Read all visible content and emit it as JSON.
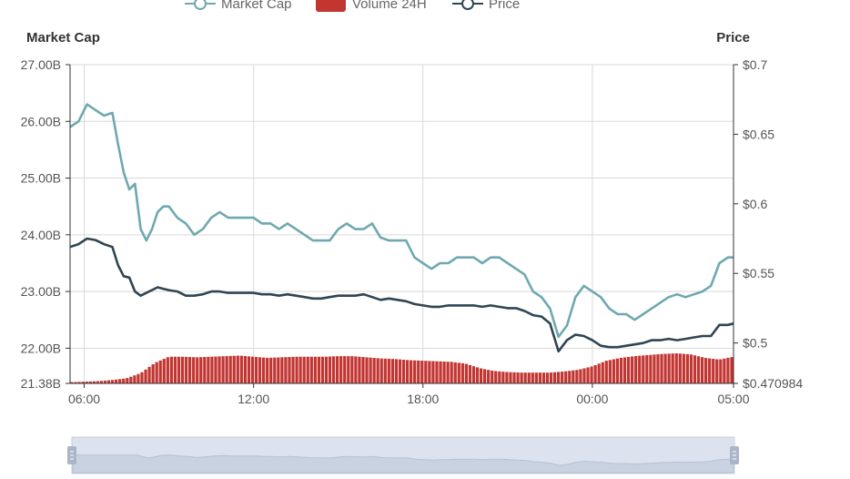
{
  "chart_data": {
    "type": "line",
    "legend": {
      "placement": "top-center",
      "items": [
        {
          "label": "Market Cap",
          "color": "#6fa8b0",
          "marker": "line-circle"
        },
        {
          "label": "Volume 24H",
          "color": "#c23531",
          "marker": "rect"
        },
        {
          "label": "Price",
          "color": "#2f4554",
          "marker": "line-circle"
        }
      ]
    },
    "left_axis": {
      "title": "Market Cap",
      "ticks": [
        "27.00B",
        "26.00B",
        "25.00B",
        "24.00B",
        "23.00B",
        "22.00B",
        "21.38B"
      ],
      "tick_values": [
        27.0,
        26.0,
        25.0,
        24.0,
        23.0,
        22.0,
        21.38
      ],
      "ylim": [
        21.38,
        27.0
      ],
      "unit": "B"
    },
    "right_axis": {
      "title": "Price",
      "ticks": [
        "$0.7",
        "$0.65",
        "$0.6",
        "$0.55",
        "$0.5",
        "$0.470984"
      ],
      "tick_values": [
        0.7,
        0.65,
        0.6,
        0.55,
        0.5,
        0.470984
      ],
      "ylim": [
        0.470984,
        0.7
      ]
    },
    "x_axis": {
      "ticks": [
        "06:00",
        "12:00",
        "18:00",
        "00:00",
        "05:00"
      ],
      "tick_hours": [
        6,
        12,
        18,
        24,
        29
      ],
      "xlim": [
        5.5,
        29
      ]
    },
    "grid": true,
    "colors": {
      "market_cap": "#6fa8b0",
      "price": "#2f4554",
      "volume": "#c23531",
      "axis": "#333333",
      "grid": "#d9d9d9"
    },
    "series": [
      {
        "name": "Market Cap",
        "axis": "left",
        "x": [
          5.5,
          5.8,
          6.1,
          6.4,
          6.7,
          7.0,
          7.2,
          7.4,
          7.6,
          7.8,
          8.0,
          8.2,
          8.4,
          8.6,
          8.8,
          9.0,
          9.3,
          9.6,
          9.9,
          10.2,
          10.5,
          10.8,
          11.1,
          11.4,
          11.7,
          12.0,
          12.3,
          12.6,
          12.9,
          13.2,
          13.5,
          13.8,
          14.1,
          14.4,
          14.7,
          15.0,
          15.3,
          15.6,
          15.9,
          16.2,
          16.5,
          16.8,
          17.1,
          17.4,
          17.7,
          18.0,
          18.3,
          18.6,
          18.9,
          19.2,
          19.5,
          19.8,
          20.1,
          20.4,
          20.7,
          21.0,
          21.3,
          21.6,
          21.9,
          22.2,
          22.5,
          22.8,
          23.1,
          23.4,
          23.7,
          24.0,
          24.3,
          24.6,
          24.9,
          25.2,
          25.5,
          25.8,
          26.1,
          26.4,
          26.7,
          27.0,
          27.3,
          27.6,
          27.9,
          28.2,
          28.5,
          28.8,
          29.0
        ],
        "values": [
          25.9,
          26.0,
          26.3,
          26.2,
          26.1,
          26.15,
          25.6,
          25.1,
          24.8,
          24.9,
          24.1,
          23.9,
          24.1,
          24.4,
          24.5,
          24.5,
          24.3,
          24.2,
          24.0,
          24.1,
          24.3,
          24.4,
          24.3,
          24.3,
          24.3,
          24.3,
          24.2,
          24.2,
          24.1,
          24.2,
          24.1,
          24.0,
          23.9,
          23.9,
          23.9,
          24.1,
          24.2,
          24.1,
          24.1,
          24.2,
          23.95,
          23.9,
          23.9,
          23.9,
          23.6,
          23.5,
          23.4,
          23.5,
          23.5,
          23.6,
          23.6,
          23.6,
          23.5,
          23.6,
          23.6,
          23.5,
          23.4,
          23.3,
          23.0,
          22.9,
          22.7,
          22.2,
          22.4,
          22.9,
          23.1,
          23.0,
          22.9,
          22.7,
          22.6,
          22.6,
          22.5,
          22.6,
          22.7,
          22.8,
          22.9,
          22.95,
          22.9,
          22.95,
          23.0,
          23.1,
          23.5,
          23.6,
          23.6
        ]
      },
      {
        "name": "Price",
        "axis": "right",
        "x": [
          5.5,
          5.8,
          6.1,
          6.4,
          6.7,
          7.0,
          7.2,
          7.4,
          7.6,
          7.8,
          8.0,
          8.2,
          8.4,
          8.6,
          8.8,
          9.0,
          9.3,
          9.6,
          9.9,
          10.2,
          10.5,
          10.8,
          11.1,
          11.4,
          11.7,
          12.0,
          12.3,
          12.6,
          12.9,
          13.2,
          13.5,
          13.8,
          14.1,
          14.4,
          14.7,
          15.0,
          15.3,
          15.6,
          15.9,
          16.2,
          16.5,
          16.8,
          17.1,
          17.4,
          17.7,
          18.0,
          18.3,
          18.6,
          18.9,
          19.2,
          19.5,
          19.8,
          20.1,
          20.4,
          20.7,
          21.0,
          21.3,
          21.6,
          21.9,
          22.2,
          22.5,
          22.8,
          23.1,
          23.4,
          23.7,
          24.0,
          24.3,
          24.6,
          24.9,
          25.2,
          25.5,
          25.8,
          26.1,
          26.4,
          26.7,
          27.0,
          27.3,
          27.6,
          27.9,
          28.2,
          28.5,
          28.8,
          29.0
        ],
        "values": [
          0.569,
          0.571,
          0.575,
          0.574,
          0.571,
          0.569,
          0.556,
          0.548,
          0.547,
          0.537,
          0.534,
          0.536,
          0.538,
          0.54,
          0.539,
          0.538,
          0.537,
          0.534,
          0.534,
          0.535,
          0.537,
          0.537,
          0.536,
          0.536,
          0.536,
          0.536,
          0.535,
          0.535,
          0.534,
          0.535,
          0.534,
          0.533,
          0.532,
          0.532,
          0.533,
          0.534,
          0.534,
          0.534,
          0.535,
          0.533,
          0.531,
          0.532,
          0.531,
          0.53,
          0.528,
          0.527,
          0.526,
          0.526,
          0.527,
          0.527,
          0.527,
          0.527,
          0.526,
          0.527,
          0.526,
          0.525,
          0.525,
          0.523,
          0.52,
          0.519,
          0.514,
          0.494,
          0.502,
          0.506,
          0.505,
          0.502,
          0.498,
          0.497,
          0.497,
          0.498,
          0.499,
          0.5,
          0.502,
          0.502,
          0.503,
          0.502,
          0.503,
          0.504,
          0.505,
          0.505,
          0.513,
          0.513,
          0.514
        ]
      },
      {
        "name": "Volume 24H",
        "axis": "left",
        "type": "bar",
        "x": [
          5.5,
          6.0,
          6.5,
          7.0,
          7.5,
          8.0,
          8.5,
          9.0,
          9.5,
          10.0,
          10.5,
          11.0,
          11.5,
          12.0,
          12.5,
          13.0,
          13.5,
          14.0,
          14.5,
          15.0,
          15.5,
          16.0,
          16.5,
          17.0,
          17.5,
          18.0,
          18.5,
          19.0,
          19.5,
          20.0,
          20.5,
          21.0,
          21.5,
          22.0,
          22.5,
          23.0,
          23.5,
          24.0,
          24.5,
          25.0,
          25.5,
          26.0,
          26.5,
          27.0,
          27.5,
          28.0,
          28.5,
          29.0
        ],
        "values": [
          21.4,
          21.41,
          21.42,
          21.44,
          21.47,
          21.56,
          21.74,
          21.85,
          21.85,
          21.84,
          21.85,
          21.86,
          21.87,
          21.85,
          21.83,
          21.84,
          21.85,
          21.85,
          21.85,
          21.86,
          21.86,
          21.84,
          21.82,
          21.81,
          21.79,
          21.78,
          21.77,
          21.76,
          21.73,
          21.65,
          21.6,
          21.58,
          21.57,
          21.57,
          21.57,
          21.59,
          21.62,
          21.68,
          21.78,
          21.83,
          21.86,
          21.88,
          21.9,
          21.91,
          21.89,
          21.83,
          21.8,
          21.85
        ]
      }
    ]
  },
  "dataZoom": {
    "range_start": 0,
    "range_end": 1
  }
}
